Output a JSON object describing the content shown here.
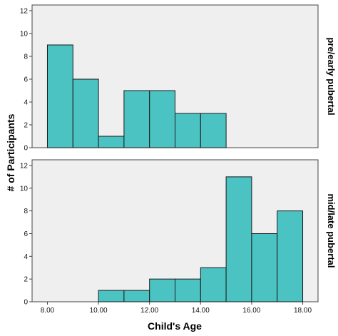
{
  "chart_data": {
    "type": "bar",
    "subtype": "histogram",
    "xlabel": "Child's Age",
    "ylabel": "# of Participants",
    "xlim": [
      7.4,
      18.6
    ],
    "ylim": [
      0,
      12.5
    ],
    "x_ticks": [
      "8.00",
      "10.00",
      "12.00",
      "14.00",
      "16.00",
      "18.00"
    ],
    "x_tick_values": [
      8,
      10,
      12,
      14,
      16,
      18
    ],
    "y_ticks": [
      0,
      2,
      4,
      6,
      8,
      10,
      12
    ],
    "bin_edges": [
      8,
      9,
      10,
      11,
      12,
      13,
      14,
      15,
      16,
      17,
      18
    ],
    "grid": false,
    "colors": {
      "bar_fill": "#4cc3c3",
      "bar_stroke": "#1a1a1a",
      "panel_background": "#efefef"
    },
    "panels": [
      {
        "name": "pre/early pubertal",
        "counts": [
          9,
          6,
          1,
          5,
          5,
          3,
          3,
          0,
          0,
          0
        ]
      },
      {
        "name": "mid/late pubertal",
        "counts": [
          0,
          0,
          1,
          1,
          2,
          2,
          3,
          11,
          6,
          8
        ]
      }
    ]
  }
}
